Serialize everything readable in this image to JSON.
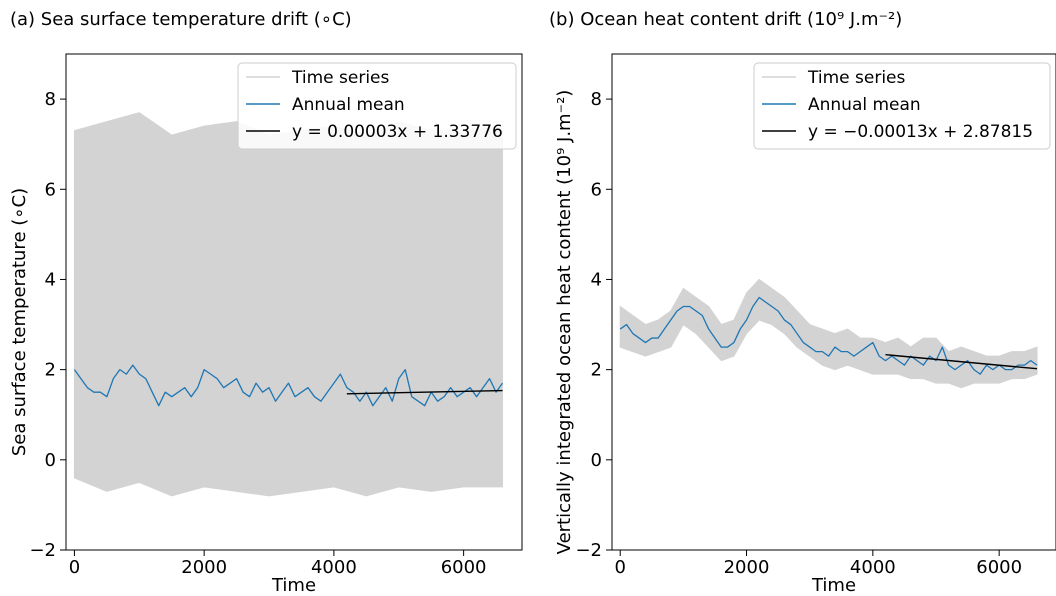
{
  "chart_data": [
    {
      "type": "line",
      "title": "(a) Sea surface temperature drift (∘C)",
      "xlabel": "Time",
      "ylabel": "Sea surface temperature (∘C)",
      "xlim": [
        -130,
        6900
      ],
      "ylim": [
        -2,
        9
      ],
      "xticks": [
        0,
        2000,
        4000,
        6000
      ],
      "xtick_labels": [
        "0",
        "2000",
        "4000",
        "6000"
      ],
      "yticks": [
        -2,
        0,
        2,
        4,
        6,
        8
      ],
      "ytick_labels": [
        "−2",
        "0",
        "2",
        "4",
        "6",
        "8"
      ],
      "grid": false,
      "legend_position": "top-right",
      "series": [
        {
          "name": "Time series",
          "kind": "band",
          "color": "#d3d3d3",
          "x": [
            0,
            500,
            1000,
            1500,
            2000,
            2500,
            3000,
            3500,
            4000,
            4500,
            5000,
            5500,
            6000,
            6600
          ],
          "upper": [
            7.3,
            7.5,
            7.7,
            7.2,
            7.4,
            7.5,
            7.2,
            7.3,
            7.4,
            7.2,
            7.5,
            7.3,
            7.3,
            7.4
          ],
          "lower": [
            -0.4,
            -0.7,
            -0.5,
            -0.8,
            -0.6,
            -0.7,
            -0.8,
            -0.7,
            -0.6,
            -0.8,
            -0.6,
            -0.7,
            -0.6,
            -0.6
          ]
        },
        {
          "name": "Annual mean",
          "kind": "line",
          "color": "#1f77b4",
          "x": [
            0,
            100,
            200,
            300,
            400,
            500,
            600,
            700,
            800,
            900,
            1000,
            1100,
            1200,
            1300,
            1400,
            1500,
            1600,
            1700,
            1800,
            1900,
            2000,
            2100,
            2200,
            2300,
            2400,
            2500,
            2600,
            2700,
            2800,
            2900,
            3000,
            3100,
            3200,
            3300,
            3400,
            3500,
            3600,
            3700,
            3800,
            3900,
            4000,
            4100,
            4200,
            4300,
            4400,
            4500,
            4600,
            4700,
            4800,
            4900,
            5000,
            5100,
            5200,
            5300,
            5400,
            5500,
            5600,
            5700,
            5800,
            5900,
            6000,
            6100,
            6200,
            6300,
            6400,
            6500,
            6600
          ],
          "y": [
            2.0,
            1.8,
            1.6,
            1.5,
            1.5,
            1.4,
            1.8,
            2.0,
            1.9,
            2.1,
            1.9,
            1.8,
            1.5,
            1.2,
            1.5,
            1.4,
            1.5,
            1.6,
            1.4,
            1.6,
            2.0,
            1.9,
            1.8,
            1.6,
            1.7,
            1.8,
            1.5,
            1.4,
            1.7,
            1.5,
            1.6,
            1.3,
            1.5,
            1.7,
            1.4,
            1.5,
            1.6,
            1.4,
            1.3,
            1.5,
            1.7,
            1.9,
            1.6,
            1.5,
            1.3,
            1.5,
            1.2,
            1.4,
            1.6,
            1.3,
            1.8,
            2.0,
            1.4,
            1.3,
            1.2,
            1.5,
            1.3,
            1.4,
            1.6,
            1.4,
            1.5,
            1.6,
            1.4,
            1.6,
            1.8,
            1.5,
            1.7
          ]
        },
        {
          "name": "y = 0.00003x + 1.33776",
          "kind": "fit",
          "color": "#000000",
          "slope": 3e-05,
          "intercept": 1.33776,
          "x_range": [
            4200,
            6600
          ]
        }
      ]
    },
    {
      "type": "line",
      "title": "(b) Ocean heat content drift (10⁹ J.m⁻²)",
      "xlabel": "Time",
      "ylabel": "Vertically integrated ocean heat content (10⁹ J.m⁻²)",
      "xlim": [
        -130,
        6900
      ],
      "ylim": [
        -2,
        9
      ],
      "xticks": [
        0,
        2000,
        4000,
        6000
      ],
      "xtick_labels": [
        "0",
        "2000",
        "4000",
        "6000"
      ],
      "yticks": [
        -2,
        0,
        2,
        4,
        6,
        8
      ],
      "ytick_labels": [
        "−2",
        "0",
        "2",
        "4",
        "6",
        "8"
      ],
      "grid": false,
      "legend_position": "top-right",
      "series": [
        {
          "name": "Time series",
          "kind": "band",
          "color": "#d3d3d3",
          "x": [
            0,
            200,
            400,
            600,
            800,
            1000,
            1200,
            1400,
            1600,
            1800,
            2000,
            2200,
            2400,
            2600,
            2800,
            3000,
            3200,
            3400,
            3600,
            3800,
            4000,
            4200,
            4400,
            4600,
            4800,
            5000,
            5200,
            5400,
            5600,
            5800,
            6000,
            6200,
            6400,
            6600
          ],
          "upper": [
            3.4,
            3.2,
            3.0,
            3.1,
            3.3,
            3.8,
            3.6,
            3.4,
            3.0,
            3.1,
            3.7,
            4.0,
            3.8,
            3.6,
            3.3,
            3.0,
            2.9,
            2.8,
            2.9,
            2.7,
            2.7,
            2.6,
            2.7,
            2.5,
            2.7,
            2.7,
            2.4,
            2.5,
            2.4,
            2.3,
            2.3,
            2.4,
            2.4,
            2.5
          ],
          "lower": [
            2.5,
            2.4,
            2.3,
            2.4,
            2.5,
            3.0,
            2.8,
            2.5,
            2.2,
            2.3,
            2.8,
            3.1,
            3.0,
            2.8,
            2.5,
            2.3,
            2.1,
            2.0,
            2.1,
            2.0,
            1.9,
            1.9,
            1.9,
            1.8,
            1.8,
            1.7,
            1.7,
            1.6,
            1.7,
            1.7,
            1.7,
            1.8,
            1.8,
            1.9
          ]
        },
        {
          "name": "Annual mean",
          "kind": "line",
          "color": "#1f77b4",
          "x": [
            0,
            100,
            200,
            300,
            400,
            500,
            600,
            700,
            800,
            900,
            1000,
            1100,
            1200,
            1300,
            1400,
            1500,
            1600,
            1700,
            1800,
            1900,
            2000,
            2100,
            2200,
            2300,
            2400,
            2500,
            2600,
            2700,
            2800,
            2900,
            3000,
            3100,
            3200,
            3300,
            3400,
            3500,
            3600,
            3700,
            3800,
            3900,
            4000,
            4100,
            4200,
            4300,
            4400,
            4500,
            4600,
            4700,
            4800,
            4900,
            5000,
            5100,
            5200,
            5300,
            5400,
            5500,
            5600,
            5700,
            5800,
            5900,
            6000,
            6100,
            6200,
            6300,
            6400,
            6500,
            6600
          ],
          "y": [
            2.9,
            3.0,
            2.8,
            2.7,
            2.6,
            2.7,
            2.7,
            2.9,
            3.1,
            3.3,
            3.4,
            3.4,
            3.3,
            3.2,
            2.9,
            2.7,
            2.5,
            2.5,
            2.6,
            2.9,
            3.1,
            3.4,
            3.6,
            3.5,
            3.4,
            3.3,
            3.1,
            3.0,
            2.8,
            2.6,
            2.5,
            2.4,
            2.4,
            2.3,
            2.5,
            2.4,
            2.4,
            2.3,
            2.4,
            2.5,
            2.6,
            2.3,
            2.2,
            2.3,
            2.2,
            2.1,
            2.3,
            2.2,
            2.1,
            2.3,
            2.2,
            2.5,
            2.1,
            2.0,
            2.1,
            2.2,
            2.0,
            1.9,
            2.1,
            2.0,
            2.1,
            2.0,
            2.0,
            2.1,
            2.1,
            2.2,
            2.1
          ]
        },
        {
          "name": "y = −0.00013x + 2.87815",
          "kind": "fit",
          "color": "#000000",
          "slope": -0.00013,
          "intercept": 2.87815,
          "x_range": [
            4200,
            6600
          ]
        }
      ]
    }
  ]
}
